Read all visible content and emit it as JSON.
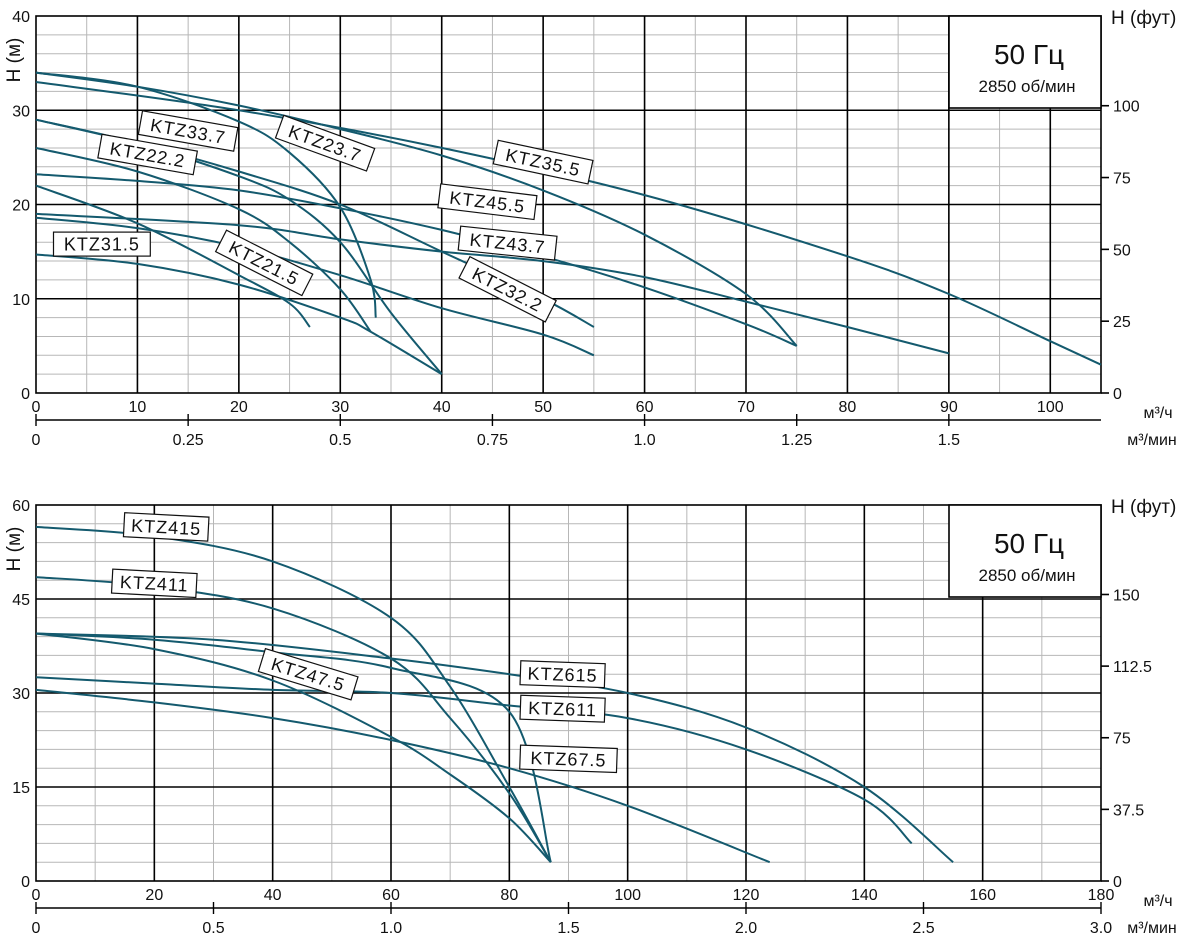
{
  "colors": {
    "curve": "#145a6e",
    "grid_minor": "#b7b7b7",
    "grid_major": "#000000",
    "axis": "#000000"
  },
  "chart_data": [
    {
      "type": "line",
      "ylabel": "H (м)",
      "right_label": "H (фут)",
      "info_title": "50 Гц",
      "info_sub": "2850 об/мин",
      "x_unit": "м³/ч",
      "x2_unit": "м³/мин",
      "xlim": [
        0,
        105
      ],
      "ylim": [
        0,
        40
      ],
      "x_ticks": [
        "0",
        "10",
        "20",
        "30",
        "40",
        "50",
        "60",
        "70",
        "80",
        "90",
        "100"
      ],
      "x_tick_values": [
        0,
        10,
        20,
        30,
        40,
        50,
        60,
        70,
        80,
        90,
        100
      ],
      "y_ticks": [
        "0",
        "10",
        "20",
        "30",
        "40"
      ],
      "y_tick_values": [
        0,
        10,
        20,
        30,
        40
      ],
      "x2_ticks": [
        "0",
        "0.25",
        "0.5",
        "0.75",
        "1.0",
        "1.25",
        "1.5"
      ],
      "x2_tick_values": [
        0,
        0.25,
        0.5,
        0.75,
        1.0,
        1.25,
        1.5
      ],
      "y2_ticks": [
        "0",
        "25",
        "50",
        "75",
        "100"
      ],
      "y2_tick_values": [
        0,
        25,
        50,
        75,
        100
      ],
      "series": [
        {
          "name": "KTZ23.7",
          "label_at": [
            28.5,
            26.5
          ],
          "label_rot": 20,
          "points": [
            [
              0,
              34
            ],
            [
              10,
              32.5
            ],
            [
              20,
              28.8
            ],
            [
              25,
              25.5
            ],
            [
              30,
              19.7
            ],
            [
              33,
              12
            ],
            [
              33.5,
              8
            ]
          ]
        },
        {
          "name": "KTZ35.5",
          "label_at": [
            50,
            24.5
          ],
          "label_rot": 12,
          "points": [
            [
              0,
              34
            ],
            [
              10,
              32.5
            ],
            [
              20,
              30.5
            ],
            [
              30,
              28
            ],
            [
              40,
              25.2
            ],
            [
              50,
              21.5
            ],
            [
              60,
              16.8
            ],
            [
              70,
              10.5
            ],
            [
              75,
              5
            ]
          ]
        },
        {
          "name": "KTZ33.7",
          "label_at": [
            15,
            27.8
          ],
          "label_rot": 10,
          "points": [
            [
              0,
              29
            ],
            [
              10,
              26.5
            ],
            [
              20,
              23
            ],
            [
              25,
              20.5
            ],
            [
              30,
              16
            ],
            [
              35,
              8.5
            ],
            [
              40,
              2
            ]
          ]
        },
        {
          "name": "KTZ22.2",
          "label_at": [
            11,
            25.3
          ],
          "label_rot": 10,
          "points": [
            [
              0,
              26
            ],
            [
              10,
              23.5
            ],
            [
              20,
              19.5
            ],
            [
              25,
              16
            ],
            [
              30,
              11
            ],
            [
              33,
              6.5
            ]
          ]
        },
        {
          "name": "KTZ45.5",
          "label_at": [
            44.5,
            20.3
          ],
          "label_rot": 7,
          "points": [
            [
              0,
              23.2
            ],
            [
              10,
              22.5
            ],
            [
              20,
              21.5
            ],
            [
              30,
              19.6
            ],
            [
              40,
              17.3
            ],
            [
              50,
              14.5
            ],
            [
              60,
              11.2
            ],
            [
              70,
              7.3
            ],
            [
              75,
              5
            ]
          ]
        },
        {
          "name": "KTZ43.7",
          "label_at": [
            46.5,
            15.9
          ],
          "label_rot": 6,
          "points": [
            [
              0,
              19
            ],
            [
              20,
              17.8
            ],
            [
              30,
              16.3
            ],
            [
              40,
              15
            ],
            [
              50,
              14
            ],
            [
              60,
              12.3
            ],
            [
              70,
              9.7
            ],
            [
              80,
              7
            ],
            [
              90,
              4.2
            ]
          ]
        },
        {
          "name": "KTZ31.5",
          "label_at": [
            6.5,
            15.8
          ],
          "label_rot": 0,
          "points": [
            [
              0,
              14.7
            ],
            [
              10,
              13.7
            ],
            [
              20,
              11.5
            ],
            [
              30,
              8
            ],
            [
              33,
              6.5
            ],
            [
              40,
              2
            ]
          ]
        },
        {
          "name": "KTZ21.5",
          "label_at": [
            22.5,
            13.8
          ],
          "label_rot": 27,
          "points": [
            [
              0,
              22
            ],
            [
              10,
              18
            ],
            [
              20,
              12.5
            ],
            [
              25,
              9.5
            ],
            [
              27,
              7
            ]
          ]
        },
        {
          "name": "KTZ32.2",
          "label_at": [
            46.5,
            11
          ],
          "label_rot": 27,
          "points": [
            [
              0,
              18.6
            ],
            [
              10,
              17.5
            ],
            [
              20,
              15.5
            ],
            [
              30,
              12.5
            ],
            [
              40,
              9
            ],
            [
              50,
              6.2
            ],
            [
              55,
              4
            ]
          ]
        },
        {
          "name": "",
          "label_at": null,
          "label_rot": 0,
          "points": [
            [
              0,
              29
            ],
            [
              10,
              26.5
            ],
            [
              20,
              23.5
            ],
            [
              30,
              20
            ],
            [
              40,
              15
            ],
            [
              50,
              10
            ],
            [
              55,
              7
            ]
          ]
        },
        {
          "name": "",
          "label_at": null,
          "label_rot": 0,
          "points": [
            [
              0,
              33
            ],
            [
              20,
              30
            ],
            [
              40,
              26
            ],
            [
              60,
              21
            ],
            [
              80,
              14.5
            ],
            [
              90,
              10.5
            ],
            [
              100,
              5.5
            ],
            [
              105,
              3
            ]
          ]
        }
      ]
    },
    {
      "type": "line",
      "ylabel": "H (м)",
      "right_label": "H (фут)",
      "info_title": "50 Гц",
      "info_sub": "2850 об/мин",
      "x_unit": "м³/ч",
      "x2_unit": "м³/мин",
      "xlim": [
        0,
        180
      ],
      "ylim": [
        0,
        60
      ],
      "x_ticks": [
        "0",
        "20",
        "40",
        "60",
        "80",
        "100",
        "120",
        "140",
        "160",
        "180"
      ],
      "x_tick_values": [
        0,
        20,
        40,
        60,
        80,
        100,
        120,
        140,
        160,
        180
      ],
      "y_ticks": [
        "0",
        "15",
        "30",
        "45",
        "60"
      ],
      "y_tick_values": [
        0,
        15,
        30,
        45,
        60
      ],
      "x2_ticks": [
        "0",
        "0.5",
        "1.0",
        "1.5",
        "2.0",
        "2.5",
        "3.0"
      ],
      "x2_tick_values": [
        0,
        0.5,
        1.0,
        1.5,
        2.0,
        2.5,
        3.0
      ],
      "y2_ticks": [
        "0",
        "37.5",
        "75",
        "112.5",
        "150"
      ],
      "y2_tick_values": [
        0,
        37.5,
        75,
        112.5,
        150
      ],
      "series": [
        {
          "name": "KTZ415",
          "label_at": [
            22,
            56.5
          ],
          "label_rot": 3,
          "points": [
            [
              0,
              56.5
            ],
            [
              20,
              55
            ],
            [
              40,
              51
            ],
            [
              60,
              42
            ],
            [
              70,
              31
            ],
            [
              80,
              15
            ],
            [
              87,
              3
            ]
          ]
        },
        {
          "name": "KTZ411",
          "label_at": [
            20,
            47.5
          ],
          "label_rot": 3,
          "points": [
            [
              0,
              48.5
            ],
            [
              20,
              47
            ],
            [
              40,
              43.5
            ],
            [
              60,
              35.5
            ],
            [
              70,
              26
            ],
            [
              80,
              14
            ],
            [
              87,
              3
            ]
          ]
        },
        {
          "name": "KTZ47.5",
          "label_at": [
            46,
            33
          ],
          "label_rot": 17,
          "points": [
            [
              0,
              39.5
            ],
            [
              20,
              37
            ],
            [
              40,
              32
            ],
            [
              60,
              23
            ],
            [
              70,
              17
            ],
            [
              80,
              10
            ],
            [
              87,
              3
            ]
          ]
        },
        {
          "name": "",
          "label_at": null,
          "label_rot": 0,
          "points": [
            [
              0,
              39.5
            ],
            [
              20,
              38.5
            ],
            [
              40,
              36.5
            ],
            [
              60,
              34
            ],
            [
              80,
              27
            ],
            [
              87,
              3
            ]
          ]
        },
        {
          "name": "KTZ615",
          "label_at": [
            89,
            33
          ],
          "label_rot": 2,
          "points": [
            [
              0,
              32.5
            ],
            [
              20,
              31.5
            ],
            [
              40,
              30.5
            ],
            [
              60,
              30
            ],
            [
              80,
              28
            ],
            [
              100,
              26
            ],
            [
              120,
              21
            ],
            [
              140,
              13
            ],
            [
              148,
              6
            ]
          ]
        },
        {
          "name": "KTZ611",
          "label_at": [
            89,
            27.5
          ],
          "label_rot": 2,
          "points": [
            [
              0,
              30.5
            ],
            [
              20,
              28.5
            ],
            [
              40,
              26
            ],
            [
              60,
              22.5
            ],
            [
              80,
              18
            ],
            [
              100,
              12
            ],
            [
              124,
              3
            ]
          ]
        },
        {
          "name": "KTZ67.5",
          "label_at": [
            90,
            19.5
          ],
          "label_rot": 2,
          "points": [
            [
              0,
              39.5
            ],
            [
              30,
              38.5
            ],
            [
              60,
              35.5
            ],
            [
              80,
              33
            ],
            [
              100,
              30
            ],
            [
              120,
              24.5
            ],
            [
              140,
              15
            ],
            [
              155,
              3
            ]
          ]
        }
      ]
    }
  ]
}
